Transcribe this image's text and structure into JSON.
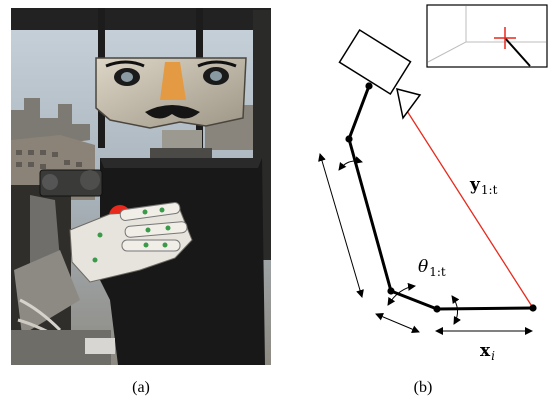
{
  "figure": {
    "panel_a": {
      "label": "(a)",
      "photo_icon": "humanoid-robot-photo"
    },
    "panel_b": {
      "label": "(b)",
      "symbol_y": {
        "base": "y",
        "sub": "1:t"
      },
      "symbol_theta": {
        "base": "θ",
        "sub": "1:t"
      },
      "symbol_x": {
        "base": "x",
        "sub": "i"
      },
      "colors": {
        "ray": "#e8291c",
        "target": "#e8291c",
        "arm": "#000000"
      },
      "inset_icon": "camera-view-inset"
    }
  }
}
